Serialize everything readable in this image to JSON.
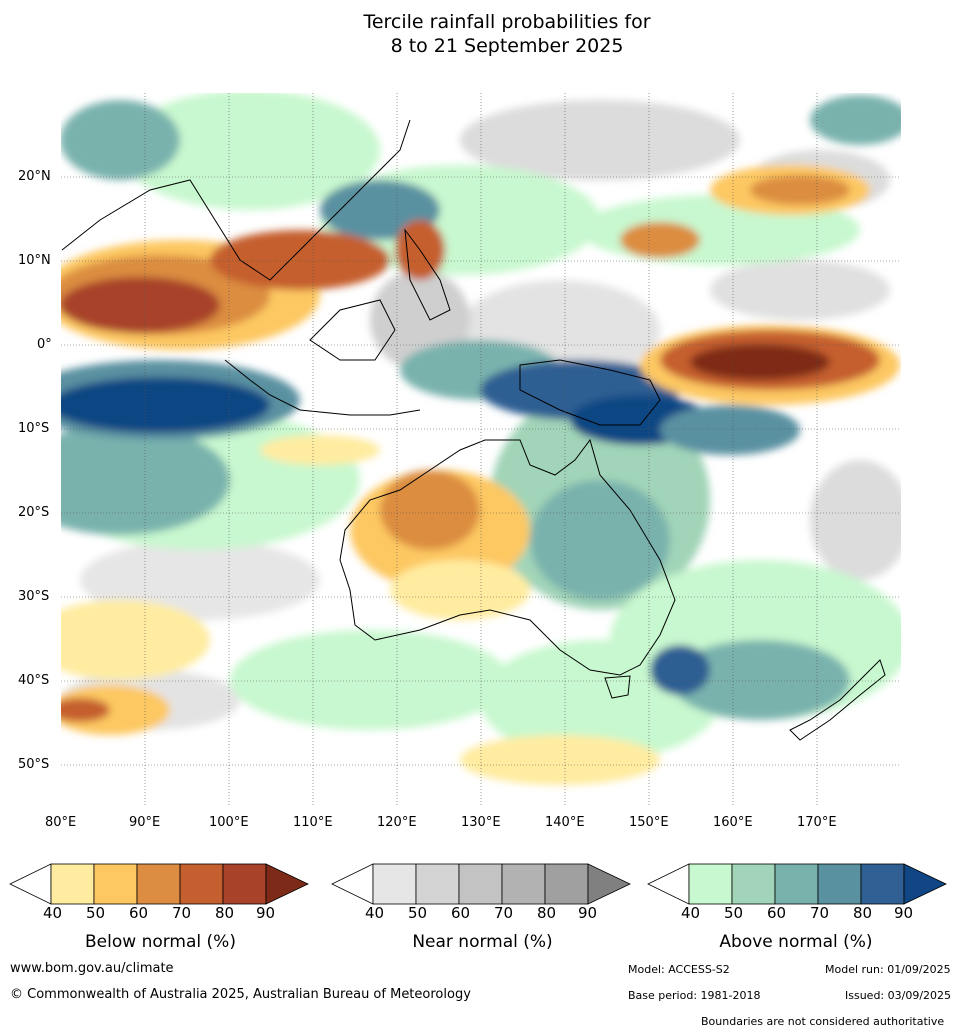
{
  "title_line1": "Tercile rainfall probabilities for",
  "title_line2": "8 to 21 September 2025",
  "lat_labels": [
    "20°N",
    "10°N",
    "0°",
    "10°S",
    "20°S",
    "30°S",
    "40°S",
    "50°S"
  ],
  "lon_labels": [
    "80°E",
    "90°E",
    "100°E",
    "110°E",
    "120°E",
    "130°E",
    "140°E",
    "150°E",
    "160°E",
    "170°E"
  ],
  "colorbars": [
    {
      "title": "Below normal (%)",
      "ticks": [
        "40",
        "50",
        "60",
        "70",
        "80",
        "90"
      ],
      "colors": [
        "#ffffff",
        "#ffeca0",
        "#fdc862",
        "#dc8d41",
        "#c55f2f",
        "#a8432a",
        "#7e2a19"
      ]
    },
    {
      "title": "Near normal (%)",
      "ticks": [
        "40",
        "50",
        "60",
        "70",
        "80",
        "90"
      ],
      "colors": [
        "#ffffff",
        "#e6e6e6",
        "#d4d4d4",
        "#c3c3c3",
        "#b2b2b2",
        "#a0a0a0",
        "#808080"
      ]
    },
    {
      "title": "Above normal (%)",
      "ticks": [
        "40",
        "50",
        "60",
        "70",
        "80",
        "90"
      ],
      "colors": [
        "#ffffff",
        "#c8f8cf",
        "#a1d4b8",
        "#79b2ad",
        "#5a91a1",
        "#2f5f93",
        "#0f4683"
      ]
    }
  ],
  "footer": {
    "website": "www.bom.gov.au/climate",
    "copyright": "© Commonwealth of Australia 2025, Australian Bureau of Meteorology",
    "model": "Model: ACCESS-S2",
    "model_run": "Model run: 01/09/2025",
    "base_period": "Base period: 1981-2018",
    "issued": "Issued: 03/09/2025",
    "disclaimer": "Boundaries are not considered authoritative"
  }
}
